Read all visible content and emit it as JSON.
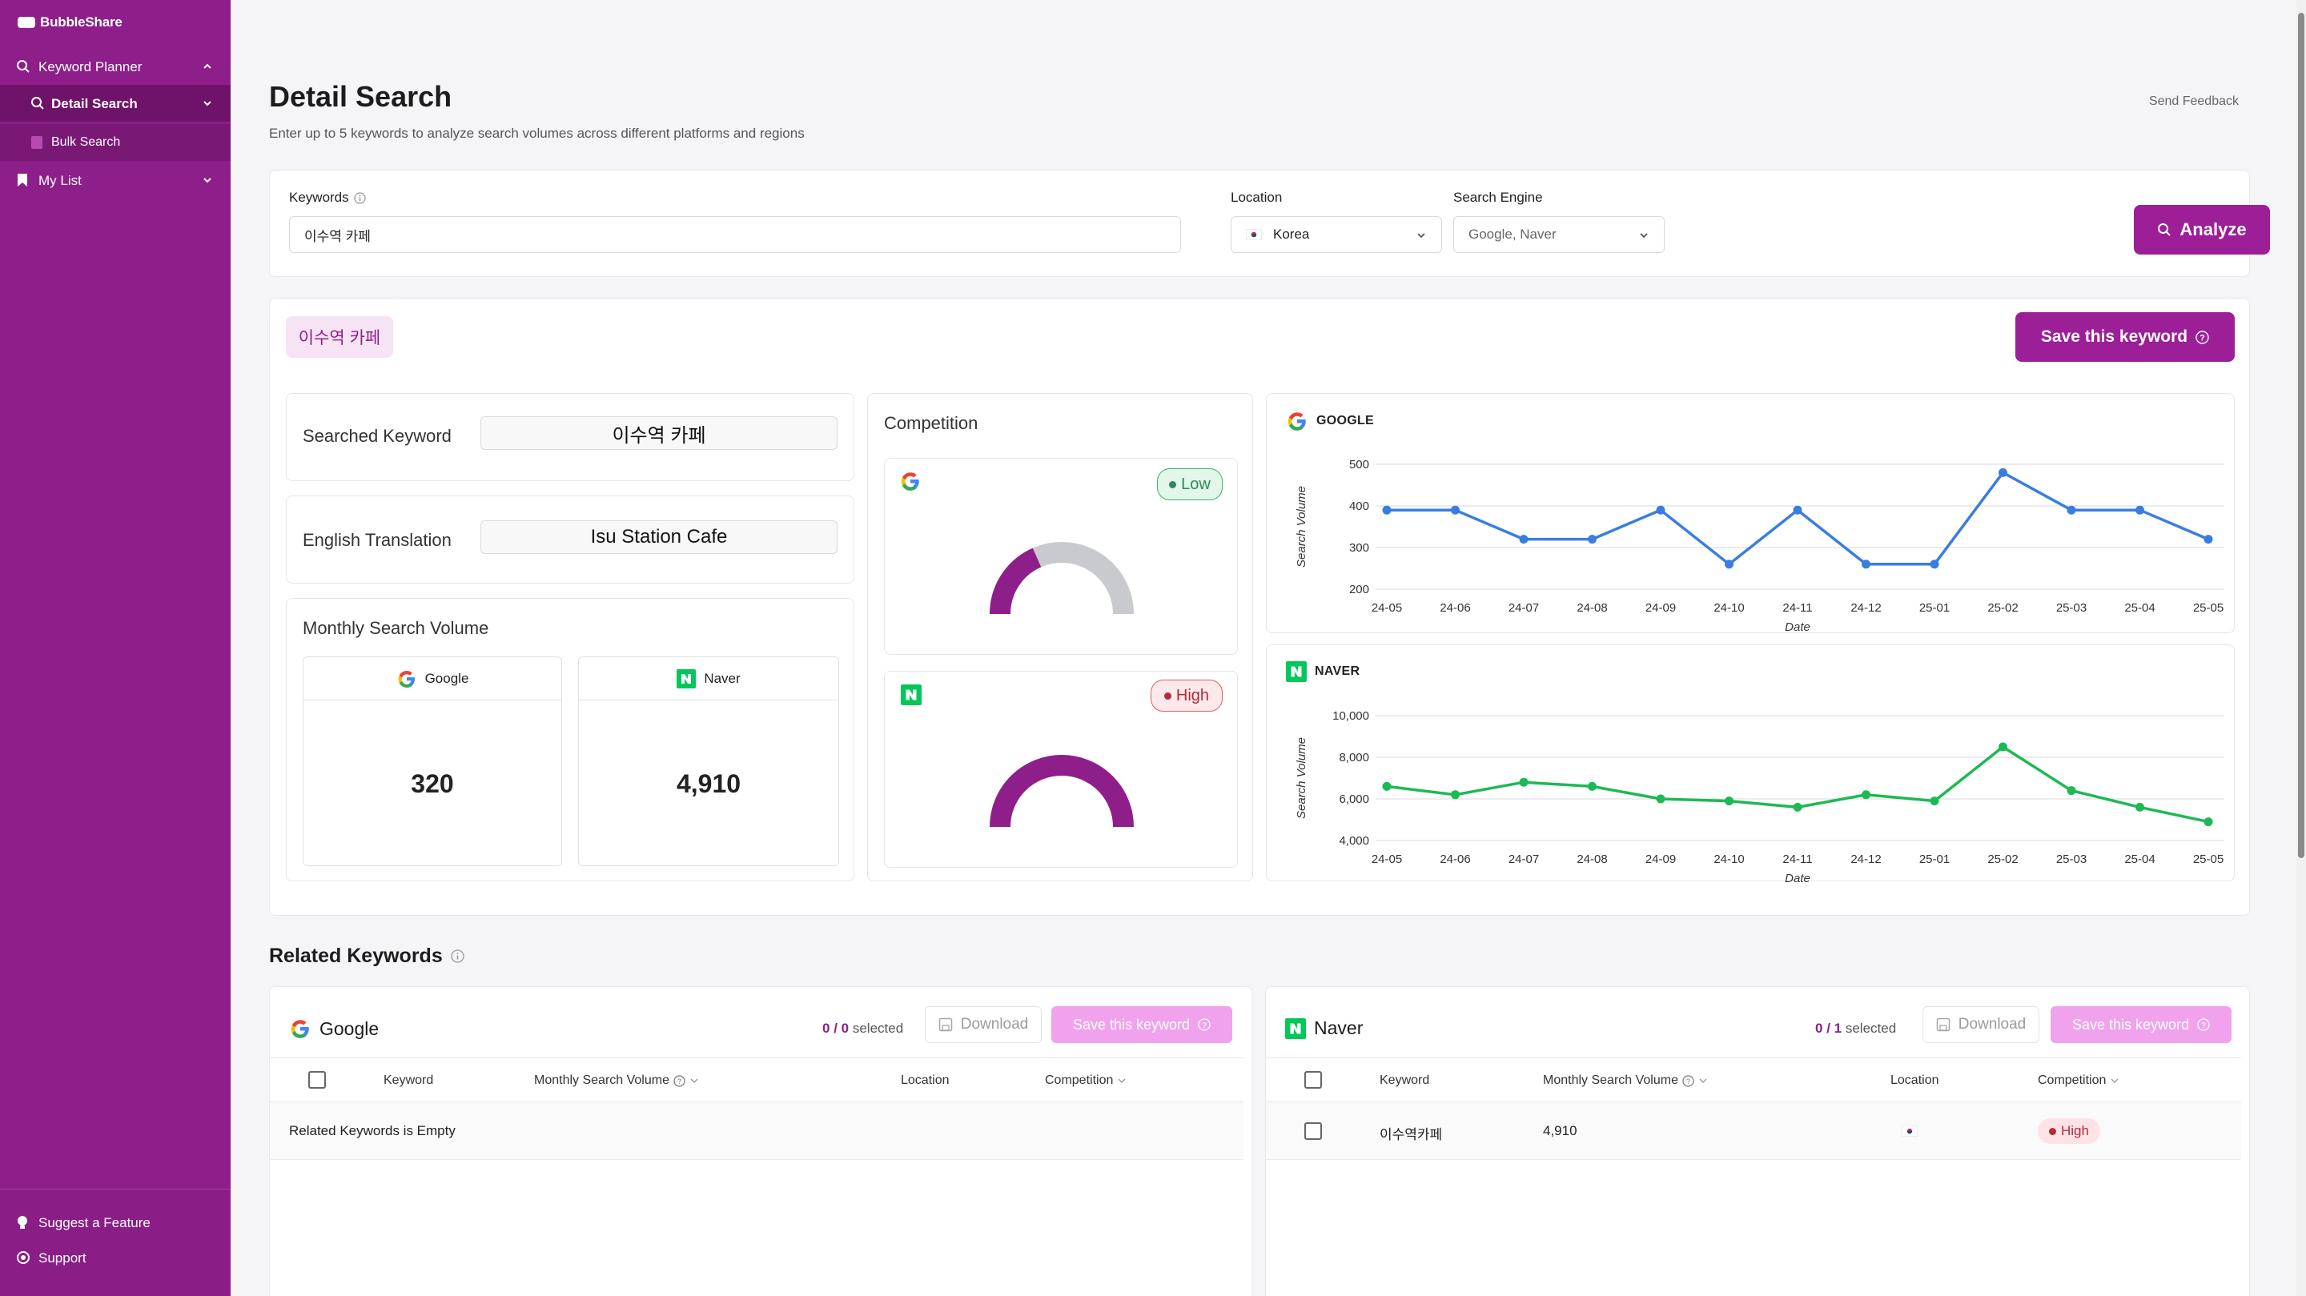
{
  "app": {
    "brand": "BubbleShare"
  },
  "sidebar": {
    "items": [
      {
        "label": "Keyword Planner"
      },
      {
        "label": "Detail Search"
      },
      {
        "label": "Bulk Search"
      },
      {
        "label": "My List"
      }
    ],
    "bottom": [
      {
        "label": "Suggest a Feature"
      },
      {
        "label": "Support"
      }
    ]
  },
  "header": {
    "title": "Detail Search",
    "subtitle": "Enter up to 5 keywords to analyze search volumes across different platforms and regions",
    "feedback": "Send Feedback"
  },
  "form": {
    "keywords_label": "Keywords",
    "keywords_value": "이수역 카페",
    "location_label": "Location",
    "location_value": "Korea",
    "engine_label": "Search Engine",
    "engine_value": "Google, Naver",
    "analyze": "Analyze"
  },
  "result": {
    "chip": "이수역 카페",
    "save": "Save this keyword",
    "searched_label": "Searched Keyword",
    "searched_value": "이수역 카페",
    "translation_label": "English Translation",
    "translation_value": "Isu Station Cafe",
    "monthly_label": "Monthly Search Volume",
    "google_label": "Google",
    "google_volume": "320",
    "naver_label": "Naver",
    "naver_volume": "4,910",
    "competition_label": "Competition",
    "google_competition": "Low",
    "naver_competition": "High"
  },
  "colors": {
    "brand": "#8e1f8a",
    "google_line": "#3a7de0",
    "naver_line": "#1db954"
  },
  "chart_data": [
    {
      "type": "line",
      "title": "GOOGLE",
      "xlabel": "Date",
      "ylabel": "Search Volume",
      "x": [
        "24-05",
        "24-06",
        "24-07",
        "24-08",
        "24-09",
        "24-10",
        "24-11",
        "24-12",
        "25-01",
        "25-02",
        "25-03",
        "25-04",
        "25-05"
      ],
      "series": [
        {
          "values": [
            390,
            390,
            320,
            320,
            390,
            260,
            390,
            260,
            260,
            480,
            390,
            390,
            320
          ]
        }
      ],
      "yticks": [
        "200",
        "300",
        "400",
        "500"
      ],
      "ylim": [
        200,
        500
      ],
      "grid": true
    },
    {
      "type": "line",
      "title": "NAVER",
      "xlabel": "Date",
      "ylabel": "Search Volume",
      "x": [
        "24-05",
        "24-06",
        "24-07",
        "24-08",
        "24-09",
        "24-10",
        "24-11",
        "24-12",
        "25-01",
        "25-02",
        "25-03",
        "25-04",
        "25-05"
      ],
      "series": [
        {
          "values": [
            6600,
            6200,
            6800,
            6600,
            6000,
            5900,
            5600,
            6200,
            5900,
            8500,
            6400,
            5600,
            4900
          ]
        }
      ],
      "yticks": [
        "4,000",
        "6,000",
        "8,000",
        "10,000"
      ],
      "ylim": [
        4000,
        10000
      ],
      "grid": true
    }
  ],
  "related": {
    "title": "Related Keywords",
    "download": "Download",
    "save": "Save this keyword",
    "google": {
      "name": "Google",
      "sel_num": "0",
      "sel_total": "/ 0",
      "sel_text": "selected",
      "empty": "Related Keywords is Empty"
    },
    "naver": {
      "name": "Naver",
      "sel_num": "0",
      "sel_total": "/ 1",
      "sel_text": "selected",
      "rows": [
        {
          "keyword": "이수역카페",
          "volume": "4,910",
          "competition": "High"
        }
      ]
    },
    "columns": {
      "keyword": "Keyword",
      "volume": "Monthly Search Volume",
      "location": "Location",
      "competition": "Competition"
    }
  }
}
